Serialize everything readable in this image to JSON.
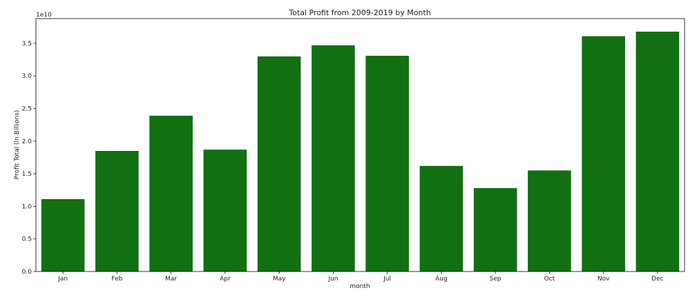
{
  "chart_data": {
    "type": "bar",
    "title": "Total Profit from 2009-2019 by Month",
    "xlabel": "month",
    "ylabel": "Profit Total (In Billions)",
    "offset_label": "1e10",
    "categories": [
      "Jan",
      "Feb",
      "Mar",
      "Apr",
      "May",
      "Jun",
      "Jul",
      "Aug",
      "Sep",
      "Oct",
      "Nov",
      "Dec"
    ],
    "values": [
      11100000000,
      18500000000,
      23900000000,
      18700000000,
      33000000000,
      34700000000,
      33100000000,
      16200000000,
      12800000000,
      15500000000,
      36100000000,
      36800000000
    ],
    "ylim": [
      0,
      38800000000
    ],
    "y_ticks": [
      0,
      5000000000,
      10000000000,
      15000000000,
      20000000000,
      25000000000,
      30000000000,
      35000000000
    ],
    "y_tick_labels": [
      "0.0",
      "0.5",
      "1.0",
      "1.5",
      "2.0",
      "2.5",
      "3.0",
      "3.5"
    ],
    "bar_color": "#117011",
    "grid": false,
    "legend": "none"
  }
}
